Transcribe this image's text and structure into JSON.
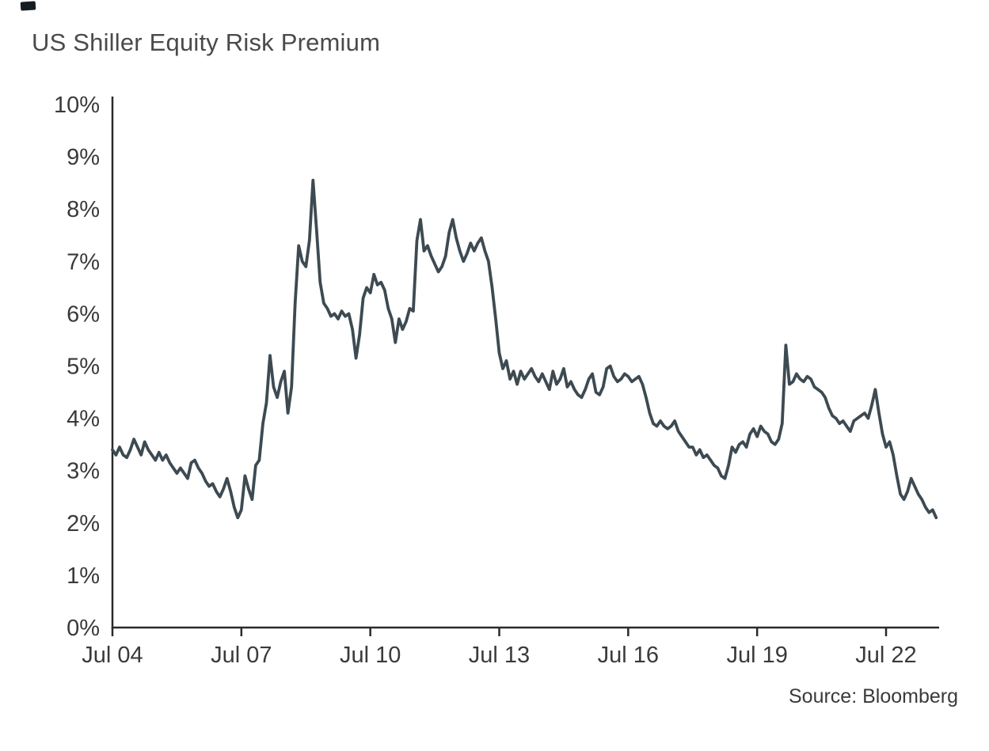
{
  "title": "US Shiller Equity Risk Premium",
  "source": "Source: Bloomberg",
  "chart_data": {
    "type": "line",
    "title": "US Shiller Equity Risk Premium",
    "xlabel": "",
    "ylabel": "",
    "unit": "%",
    "grid": false,
    "legend": "none",
    "source": "Bloomberg",
    "line_color": "#3d4a52",
    "axis_color": "#2a2a2a",
    "ylim": [
      0,
      10
    ],
    "x_start": "2004-07",
    "frequency": "monthly",
    "y_ticks": [
      {
        "label": "0%",
        "value": 0
      },
      {
        "label": "1%",
        "value": 1
      },
      {
        "label": "2%",
        "value": 2
      },
      {
        "label": "3%",
        "value": 3
      },
      {
        "label": "4%",
        "value": 4
      },
      {
        "label": "5%",
        "value": 5
      },
      {
        "label": "6%",
        "value": 6
      },
      {
        "label": "7%",
        "value": 7
      },
      {
        "label": "8%",
        "value": 8
      },
      {
        "label": "9%",
        "value": 9
      },
      {
        "label": "10%",
        "value": 10
      }
    ],
    "x_ticks": [
      {
        "label": "Jul 04",
        "month": 0
      },
      {
        "label": "Jul 07",
        "month": 36
      },
      {
        "label": "Jul 10",
        "month": 72
      },
      {
        "label": "Jul 13",
        "month": 108
      },
      {
        "label": "Jul 16",
        "month": 144
      },
      {
        "label": "Jul 19",
        "month": 180
      },
      {
        "label": "Jul 22",
        "month": 216
      }
    ],
    "values": [
      3.4,
      3.3,
      3.45,
      3.3,
      3.25,
      3.4,
      3.6,
      3.45,
      3.3,
      3.55,
      3.4,
      3.3,
      3.2,
      3.35,
      3.2,
      3.3,
      3.15,
      3.05,
      2.95,
      3.05,
      2.95,
      2.85,
      3.15,
      3.2,
      3.05,
      2.95,
      2.8,
      2.7,
      2.75,
      2.6,
      2.5,
      2.65,
      2.85,
      2.6,
      2.3,
      2.1,
      2.25,
      2.9,
      2.65,
      2.45,
      3.1,
      3.2,
      3.9,
      4.3,
      5.2,
      4.6,
      4.4,
      4.7,
      4.9,
      4.1,
      4.6,
      6.2,
      7.3,
      7.0,
      6.9,
      7.4,
      8.55,
      7.6,
      6.6,
      6.2,
      6.1,
      5.95,
      6.0,
      5.9,
      6.05,
      5.95,
      6.0,
      5.7,
      5.15,
      5.6,
      6.3,
      6.5,
      6.4,
      6.75,
      6.55,
      6.6,
      6.45,
      6.1,
      5.9,
      5.45,
      5.9,
      5.7,
      5.85,
      6.1,
      6.05,
      7.4,
      7.8,
      7.2,
      7.3,
      7.1,
      6.95,
      6.8,
      6.9,
      7.1,
      7.55,
      7.8,
      7.45,
      7.2,
      7.0,
      7.15,
      7.35,
      7.2,
      7.35,
      7.45,
      7.2,
      7.0,
      6.5,
      5.9,
      5.25,
      4.95,
      5.1,
      4.75,
      4.9,
      4.65,
      4.9,
      4.75,
      4.85,
      4.95,
      4.8,
      4.7,
      4.85,
      4.7,
      4.55,
      4.9,
      4.65,
      4.75,
      4.95,
      4.6,
      4.7,
      4.55,
      4.45,
      4.4,
      4.55,
      4.75,
      4.85,
      4.5,
      4.45,
      4.6,
      4.95,
      5.0,
      4.8,
      4.7,
      4.75,
      4.85,
      4.8,
      4.7,
      4.75,
      4.8,
      4.65,
      4.4,
      4.1,
      3.9,
      3.85,
      3.95,
      3.85,
      3.8,
      3.85,
      3.95,
      3.75,
      3.65,
      3.55,
      3.45,
      3.45,
      3.3,
      3.4,
      3.25,
      3.3,
      3.2,
      3.1,
      3.05,
      2.9,
      2.85,
      3.1,
      3.45,
      3.35,
      3.5,
      3.55,
      3.45,
      3.7,
      3.8,
      3.65,
      3.85,
      3.75,
      3.7,
      3.55,
      3.5,
      3.6,
      3.9,
      5.4,
      4.65,
      4.7,
      4.85,
      4.75,
      4.7,
      4.8,
      4.75,
      4.6,
      4.55,
      4.5,
      4.4,
      4.2,
      4.05,
      4.0,
      3.9,
      3.95,
      3.85,
      3.75,
      3.95,
      4.0,
      4.05,
      4.1,
      4.0,
      4.25,
      4.55,
      4.1,
      3.7,
      3.45,
      3.55,
      3.3,
      2.9,
      2.55,
      2.45,
      2.6,
      2.85,
      2.7,
      2.55,
      2.45,
      2.3,
      2.2,
      2.25,
      2.1
    ]
  }
}
